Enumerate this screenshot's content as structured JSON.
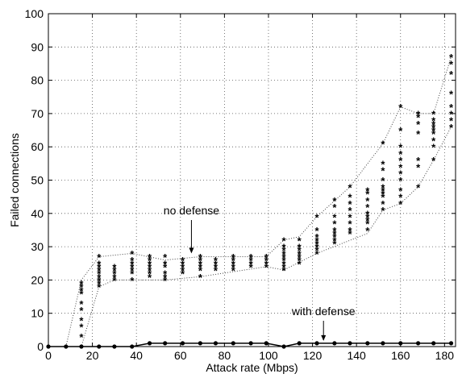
{
  "chart_data": {
    "type": "scatter",
    "title": "",
    "xlabel": "Attack rate (Mbps)",
    "ylabel": "Failed connections",
    "xlim": [
      0,
      185
    ],
    "ylim": [
      0,
      100
    ],
    "x_ticks": [
      0,
      20,
      40,
      60,
      80,
      100,
      120,
      140,
      160,
      180
    ],
    "y_ticks": [
      0,
      10,
      20,
      30,
      40,
      50,
      60,
      70,
      80,
      90,
      100
    ],
    "grid": true,
    "series": [
      {
        "name": "no defense",
        "marker": "*",
        "points": [
          [
            15,
            3
          ],
          [
            15,
            6
          ],
          [
            15,
            8
          ],
          [
            15,
            11
          ],
          [
            15,
            13
          ],
          [
            15,
            16
          ],
          [
            15,
            17
          ],
          [
            15,
            18
          ],
          [
            15,
            19
          ],
          [
            23,
            18
          ],
          [
            23,
            19
          ],
          [
            23,
            20
          ],
          [
            23,
            21
          ],
          [
            23,
            22
          ],
          [
            23,
            23
          ],
          [
            23,
            24
          ],
          [
            23,
            25
          ],
          [
            23,
            27
          ],
          [
            30,
            20
          ],
          [
            30,
            21
          ],
          [
            30,
            22
          ],
          [
            30,
            23
          ],
          [
            30,
            24
          ],
          [
            38,
            20
          ],
          [
            38,
            22
          ],
          [
            38,
            23
          ],
          [
            38,
            24
          ],
          [
            38,
            25
          ],
          [
            38,
            26
          ],
          [
            38,
            28
          ],
          [
            46,
            21
          ],
          [
            46,
            22
          ],
          [
            46,
            23
          ],
          [
            46,
            24
          ],
          [
            46,
            25
          ],
          [
            46,
            26
          ],
          [
            46,
            27
          ],
          [
            53,
            20
          ],
          [
            53,
            21
          ],
          [
            53,
            22
          ],
          [
            53,
            24
          ],
          [
            53,
            25
          ],
          [
            53,
            27
          ],
          [
            61,
            22
          ],
          [
            61,
            23
          ],
          [
            61,
            24
          ],
          [
            61,
            25
          ],
          [
            61,
            26
          ],
          [
            69,
            21
          ],
          [
            69,
            23
          ],
          [
            69,
            24
          ],
          [
            69,
            25
          ],
          [
            69,
            26
          ],
          [
            69,
            27
          ],
          [
            76,
            23
          ],
          [
            76,
            24
          ],
          [
            76,
            25
          ],
          [
            76,
            26
          ],
          [
            84,
            23
          ],
          [
            84,
            24
          ],
          [
            84,
            25
          ],
          [
            84,
            26
          ],
          [
            84,
            27
          ],
          [
            92,
            24
          ],
          [
            92,
            25
          ],
          [
            92,
            26
          ],
          [
            92,
            27
          ],
          [
            99,
            24
          ],
          [
            99,
            25
          ],
          [
            99,
            26
          ],
          [
            99,
            27
          ],
          [
            107,
            23
          ],
          [
            107,
            24
          ],
          [
            107,
            25
          ],
          [
            107,
            26
          ],
          [
            107,
            27
          ],
          [
            107,
            28
          ],
          [
            107,
            29
          ],
          [
            107,
            30
          ],
          [
            107,
            32
          ],
          [
            114,
            25
          ],
          [
            114,
            26
          ],
          [
            114,
            27
          ],
          [
            114,
            28
          ],
          [
            114,
            29
          ],
          [
            114,
            30
          ],
          [
            114,
            32
          ],
          [
            122,
            28
          ],
          [
            122,
            29
          ],
          [
            122,
            30
          ],
          [
            122,
            31
          ],
          [
            122,
            32
          ],
          [
            122,
            33
          ],
          [
            122,
            35
          ],
          [
            122,
            39
          ],
          [
            130,
            31
          ],
          [
            130,
            32
          ],
          [
            130,
            33
          ],
          [
            130,
            34
          ],
          [
            130,
            35
          ],
          [
            130,
            37
          ],
          [
            130,
            39
          ],
          [
            130,
            42
          ],
          [
            130,
            44
          ],
          [
            137,
            34
          ],
          [
            137,
            35
          ],
          [
            137,
            37
          ],
          [
            137,
            39
          ],
          [
            137,
            41
          ],
          [
            137,
            43
          ],
          [
            137,
            45
          ],
          [
            137,
            48
          ],
          [
            145,
            35
          ],
          [
            145,
            37
          ],
          [
            145,
            38
          ],
          [
            145,
            39
          ],
          [
            145,
            40
          ],
          [
            145,
            42
          ],
          [
            145,
            44
          ],
          [
            145,
            46
          ],
          [
            145,
            47
          ],
          [
            152,
            41
          ],
          [
            152,
            43
          ],
          [
            152,
            45
          ],
          [
            152,
            46
          ],
          [
            152,
            47
          ],
          [
            152,
            48
          ],
          [
            152,
            50
          ],
          [
            152,
            53
          ],
          [
            152,
            55
          ],
          [
            152,
            61
          ],
          [
            160,
            43
          ],
          [
            160,
            45
          ],
          [
            160,
            47
          ],
          [
            160,
            50
          ],
          [
            160,
            52
          ],
          [
            160,
            54
          ],
          [
            160,
            56
          ],
          [
            160,
            58
          ],
          [
            160,
            60
          ],
          [
            160,
            65
          ],
          [
            160,
            72
          ],
          [
            168,
            48
          ],
          [
            168,
            54
          ],
          [
            168,
            56
          ],
          [
            168,
            64
          ],
          [
            168,
            67
          ],
          [
            168,
            69
          ],
          [
            168,
            70
          ],
          [
            175,
            56
          ],
          [
            175,
            60
          ],
          [
            175,
            62
          ],
          [
            175,
            64
          ],
          [
            175,
            65
          ],
          [
            175,
            66
          ],
          [
            175,
            67
          ],
          [
            175,
            68
          ],
          [
            175,
            70
          ],
          [
            183,
            66
          ],
          [
            183,
            68
          ],
          [
            183,
            70
          ],
          [
            183,
            72
          ],
          [
            183,
            76
          ],
          [
            183,
            82
          ],
          [
            183,
            85
          ],
          [
            183,
            87
          ]
        ],
        "envelope_upper": [
          [
            8,
            0
          ],
          [
            15,
            20
          ],
          [
            23,
            27
          ],
          [
            38,
            28
          ],
          [
            53,
            26
          ],
          [
            69,
            27
          ],
          [
            99,
            27
          ],
          [
            107,
            32
          ],
          [
            114,
            33
          ],
          [
            122,
            39
          ],
          [
            137,
            48
          ],
          [
            152,
            61
          ],
          [
            160,
            72
          ],
          [
            168,
            70
          ],
          [
            175,
            70
          ],
          [
            183,
            87
          ]
        ],
        "envelope_lower": [
          [
            8,
            0
          ],
          [
            15,
            0
          ],
          [
            23,
            18
          ],
          [
            30,
            20
          ],
          [
            53,
            20
          ],
          [
            69,
            21
          ],
          [
            99,
            24
          ],
          [
            107,
            23
          ],
          [
            122,
            28
          ],
          [
            145,
            34
          ],
          [
            152,
            41
          ],
          [
            160,
            43
          ],
          [
            168,
            48
          ],
          [
            175,
            56
          ],
          [
            183,
            66
          ]
        ]
      },
      {
        "name": "with defense",
        "marker": "o",
        "points": [
          [
            0,
            0
          ],
          [
            8,
            0
          ],
          [
            15,
            0
          ],
          [
            23,
            0
          ],
          [
            30,
            0
          ],
          [
            38,
            0
          ],
          [
            46,
            1
          ],
          [
            53,
            1
          ],
          [
            61,
            1
          ],
          [
            69,
            1
          ],
          [
            76,
            1
          ],
          [
            84,
            1
          ],
          [
            92,
            1
          ],
          [
            99,
            1
          ],
          [
            107,
            0
          ],
          [
            114,
            1
          ],
          [
            122,
            1
          ],
          [
            130,
            1
          ],
          [
            137,
            1
          ],
          [
            145,
            1
          ],
          [
            152,
            1
          ],
          [
            160,
            1
          ],
          [
            168,
            1
          ],
          [
            175,
            1
          ],
          [
            183,
            1
          ]
        ]
      }
    ],
    "annotations": [
      {
        "text": "no defense",
        "arrow_to": [
          65,
          28
        ]
      },
      {
        "text": "with defense",
        "arrow_to": [
          125,
          1
        ]
      }
    ]
  },
  "icons": {
    "no_defense_marker": "asterisk",
    "with_defense_marker": "filled-circle"
  },
  "colors": {
    "marks": "#000000",
    "grid": "#555555",
    "background": "#ffffff"
  }
}
